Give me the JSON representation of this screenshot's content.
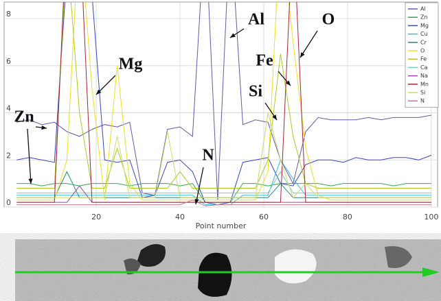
{
  "chart_data": {
    "type": "line",
    "x_label": "Point number",
    "x": [
      1,
      4,
      7,
      10,
      13,
      16,
      19,
      22,
      25,
      28,
      31,
      34,
      37,
      40,
      43,
      46,
      49,
      52,
      55,
      58,
      61,
      64,
      67,
      70,
      73,
      76,
      79,
      82,
      85,
      88,
      91,
      94,
      97,
      100
    ],
    "xlim": [
      -2,
      101.5
    ],
    "xticks": [
      20,
      40,
      60,
      80,
      100
    ],
    "ylim": [
      0,
      8.7
    ],
    "yticks": [
      0,
      2,
      4,
      6,
      8
    ],
    "grid": true,
    "legend": "top-right",
    "annotations": [
      "Zn",
      "Mg",
      "Al",
      "N",
      "Fe",
      "O",
      "Si"
    ],
    "series": [
      {
        "name": "Al",
        "color": "#6655aa",
        "values": [
          3.6,
          3.7,
          3.5,
          3.6,
          3.2,
          3.0,
          3.3,
          3.5,
          3.4,
          3.6,
          0.6,
          0.5,
          3.3,
          3.4,
          3.0,
          12,
          0.3,
          12,
          3.5,
          3.7,
          3.6,
          2.0,
          1.0,
          3.2,
          3.8,
          3.7,
          3.7,
          3.7,
          3.8,
          3.7,
          3.8,
          3.8,
          3.8,
          3.9
        ]
      },
      {
        "name": "Zn",
        "color": "#33aa44",
        "values": [
          1.0,
          1.0,
          0.9,
          1.0,
          1.0,
          0.9,
          1.0,
          1.0,
          1.0,
          0.9,
          1.0,
          1.0,
          1.0,
          0.9,
          1.0,
          0.2,
          0.2,
          0.2,
          1.0,
          1.0,
          0.9,
          1.0,
          1.0,
          1.0,
          1.0,
          0.9,
          1.0,
          1.0,
          1.0,
          1.0,
          0.9,
          1.0,
          1.0,
          1.0
        ]
      },
      {
        "name": "Mg",
        "color": "#3344cc",
        "values": [
          2.0,
          2.1,
          2.0,
          1.9,
          10,
          12,
          9,
          2.0,
          1.9,
          2.0,
          0.4,
          0.5,
          1.9,
          2.0,
          1.5,
          0.2,
          0.1,
          0.2,
          1.9,
          2.0,
          2.1,
          1.0,
          0.9,
          1.8,
          2.0,
          2.0,
          1.9,
          2.1,
          2.0,
          2.0,
          2.1,
          2.1,
          2.0,
          2.2
        ]
      },
      {
        "name": "Cu",
        "color": "#33bbdd",
        "values": [
          0.5,
          0.5,
          0.5,
          0.5,
          0.5,
          0.5,
          0.5,
          0.5,
          0.5,
          0.5,
          0.5,
          0.5,
          0.5,
          0.5,
          0.5,
          0.1,
          0.1,
          0.1,
          0.5,
          0.5,
          0.5,
          2.0,
          1.2,
          0.5,
          0.5,
          0.5,
          0.5,
          0.5,
          0.5,
          0.5,
          0.5,
          0.5,
          0.5,
          0.5
        ]
      },
      {
        "name": "Cr",
        "color": "#228877",
        "values": [
          0.4,
          0.4,
          0.4,
          0.4,
          1.5,
          0.4,
          0.4,
          0.4,
          0.4,
          0.4,
          0.4,
          0.4,
          0.4,
          0.4,
          0.4,
          0.4,
          0.4,
          0.4,
          0.4,
          0.4,
          0.4,
          1.0,
          0.4,
          0.4,
          0.4,
          0.4,
          0.4,
          0.4,
          0.4,
          0.4,
          0.4,
          0.4,
          0.4,
          0.4
        ]
      },
      {
        "name": "O",
        "color": "#eedd22",
        "values": [
          0.3,
          0.3,
          0.3,
          0.3,
          2,
          12,
          5,
          0.3,
          6,
          1,
          0.3,
          0.3,
          0.3,
          0.3,
          0.3,
          0.3,
          0.3,
          0.3,
          0.3,
          0.3,
          1.5,
          12,
          7,
          2.5,
          0.5,
          0.3,
          0.3,
          0.3,
          0.3,
          0.3,
          0.3,
          0.3,
          0.3,
          0.3
        ]
      },
      {
        "name": "Fe",
        "color": "#aacc22",
        "values": [
          0.8,
          0.8,
          0.8,
          0.8,
          11,
          4,
          0.8,
          0.8,
          2.5,
          0.8,
          0.8,
          0.8,
          0.8,
          1.5,
          0.8,
          0.8,
          0.8,
          0.8,
          0.8,
          0.8,
          2,
          6.5,
          3,
          1,
          0.8,
          0.8,
          0.8,
          0.8,
          0.8,
          0.8,
          0.8,
          0.8,
          0.8,
          0.8
        ]
      },
      {
        "name": "Ca",
        "color": "#77ccbb",
        "values": [
          0.6,
          0.6,
          0.6,
          0.6,
          0.6,
          0.6,
          0.6,
          0.6,
          0.6,
          0.6,
          0.6,
          0.6,
          0.6,
          0.6,
          0.6,
          0.6,
          0.6,
          0.6,
          0.6,
          0.6,
          0.6,
          1.5,
          0.6,
          0.6,
          0.6,
          0.6,
          0.6,
          0.6,
          0.6,
          0.6,
          0.6,
          0.6,
          0.6,
          0.6
        ]
      },
      {
        "name": "Na",
        "color": "#9944aa",
        "values": [
          0.2,
          0.2,
          0.2,
          0.2,
          0.2,
          0.9,
          0.2,
          0.2,
          0.2,
          0.2,
          0.2,
          0.2,
          0.2,
          0.2,
          0.2,
          0.2,
          0.2,
          0.2,
          0.2,
          0.2,
          0.2,
          0.2,
          0.2,
          0.2,
          0.2,
          0.2,
          0.2,
          0.2,
          0.2,
          0.2,
          0.2,
          0.2,
          0.2,
          0.2
        ]
      },
      {
        "name": "Mn",
        "color": "#aa2233",
        "values": [
          0.2,
          0.2,
          0.2,
          0.2,
          12,
          12,
          0.2,
          0.2,
          0.2,
          0.2,
          0.2,
          0.2,
          0.2,
          0.2,
          0.2,
          0.2,
          0.2,
          0.2,
          0.2,
          0.2,
          0.2,
          0.2,
          12,
          0.2,
          0.2,
          0.2,
          0.2,
          0.2,
          0.2,
          0.2,
          0.2,
          0.2,
          0.2,
          0.2
        ]
      },
      {
        "name": "Si",
        "color": "#ccdd66",
        "values": [
          0.4,
          0.4,
          0.4,
          0.4,
          0.4,
          0.4,
          0.4,
          0.4,
          3,
          0.4,
          0.4,
          0.4,
          3.2,
          0.4,
          0.4,
          0.4,
          0.4,
          0.4,
          0.4,
          0.4,
          4.0,
          2,
          0.4,
          1,
          0.4,
          0.4,
          0.4,
          0.4,
          0.4,
          0.4,
          0.4,
          0.4,
          0.4,
          0.4
        ]
      },
      {
        "name": "N",
        "color": "#cc7788",
        "values": [
          0.1,
          0.1,
          0.1,
          0.1,
          0.1,
          0.1,
          0.1,
          0.1,
          0.1,
          0.1,
          0.1,
          0.1,
          0.1,
          0.1,
          0.3,
          0.05,
          0.1,
          0.1,
          0.1,
          0.1,
          0.1,
          0.1,
          0.1,
          0.1,
          0.1,
          0.1,
          0.1,
          0.1,
          0.1,
          0.1,
          0.1,
          0.1,
          0.1,
          0.1
        ]
      }
    ]
  }
}
